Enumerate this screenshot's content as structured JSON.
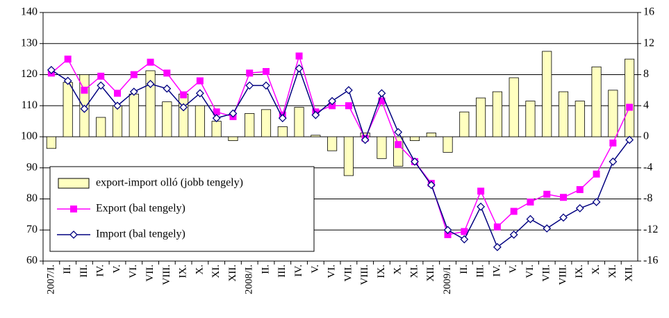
{
  "chart_data": {
    "type": "combo",
    "categories": [
      "2007/I.",
      "II.",
      "III.",
      "IV.",
      "V.",
      "VI.",
      "VII.",
      "VIII.",
      "IX.",
      "X.",
      "XI.",
      "XII.",
      "2008/I.",
      "II.",
      "III.",
      "IV.",
      "V.",
      "VI.",
      "VII.",
      "VIII.",
      "IX.",
      "X.",
      "XI.",
      "XII.",
      "2009/I.",
      "II.",
      "III.",
      "IV.",
      "V.",
      "VI.",
      "VII.",
      "VIII.",
      "IX.",
      "X.",
      "XI.",
      "XII."
    ],
    "series": [
      {
        "name": "export-import olló (jobb tengely)",
        "type": "bar",
        "axis": "y2",
        "color": "#ffffc0",
        "values": [
          -1.5,
          7,
          8,
          2.5,
          4,
          5.5,
          8.5,
          4.5,
          5.5,
          4,
          2,
          -0.5,
          3,
          3.5,
          1.3,
          3.8,
          0.2,
          -1.8,
          -5,
          0.5,
          -2.8,
          -3.8,
          -0.5,
          0.5,
          -2,
          3.2,
          5,
          5.8,
          7.6,
          4.6,
          11,
          5.8,
          4.6,
          9,
          6,
          10
        ]
      },
      {
        "name": "Export (bal tengely)",
        "type": "line",
        "marker": "square",
        "color": "#ff00ff",
        "values": [
          120.5,
          125,
          115,
          119.5,
          114,
          120,
          124,
          120.5,
          113.5,
          118,
          108,
          106.5,
          120.5,
          121,
          107,
          126,
          108,
          110,
          110,
          99.5,
          111.5,
          97.5,
          92,
          85,
          68.5,
          69.5,
          82.5,
          71,
          76,
          79,
          81.5,
          80.5,
          83,
          88,
          98,
          109.5
        ]
      },
      {
        "name": "Import (bal tengely)",
        "type": "line",
        "marker": "diamond",
        "color": "#000080",
        "values": [
          121.5,
          118,
          109,
          116.5,
          110,
          114.5,
          117,
          115.5,
          109.5,
          114,
          106,
          107.5,
          116.5,
          116.5,
          106,
          122,
          107,
          111.5,
          115,
          99,
          114,
          101.5,
          92,
          84.5,
          70,
          67,
          77.5,
          64.5,
          68.5,
          73.5,
          70.5,
          74,
          77,
          79,
          92,
          99
        ]
      }
    ],
    "ylim": [
      60,
      140
    ],
    "yticks": [
      60,
      70,
      80,
      90,
      100,
      110,
      120,
      130,
      140
    ],
    "y2lim": [
      -16,
      16
    ],
    "y2ticks": [
      -16,
      -12,
      -8,
      -4,
      0,
      4,
      8,
      12,
      16
    ],
    "grid": true,
    "legend": "lower-left"
  }
}
